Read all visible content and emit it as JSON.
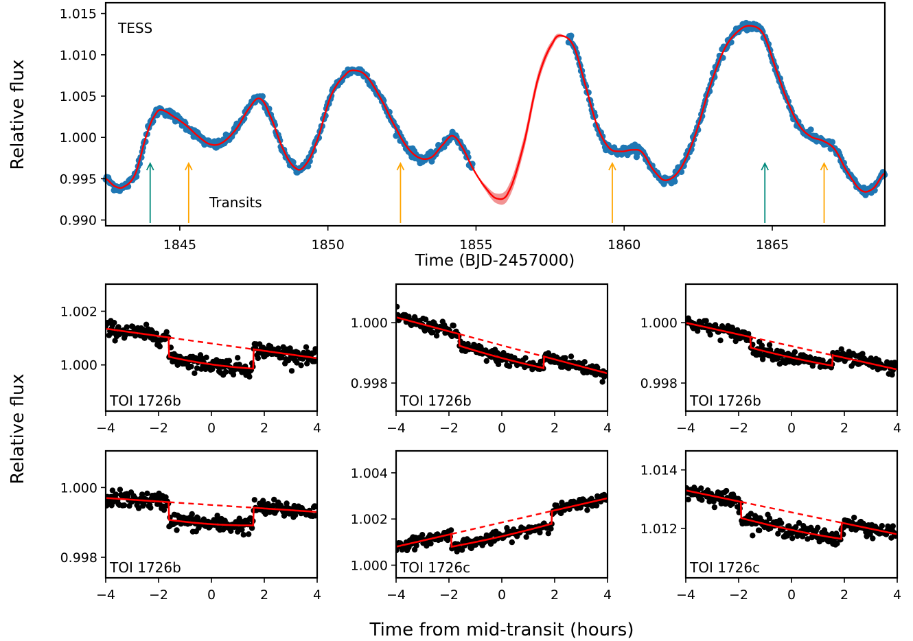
{
  "chart_data": [
    {
      "type": "line",
      "panel": "main",
      "label": "TESS",
      "annotation": "Transits",
      "xlabel": "Time (BJD-2457000)",
      "ylabel": "Relative flux",
      "xlim": [
        1842.5,
        1868.8
      ],
      "ylim": [
        0.9893,
        1.0163
      ],
      "xticks": [
        1845,
        1850,
        1855,
        1860,
        1865
      ],
      "yticks": [
        "0.990",
        "0.995",
        "1.000",
        "1.005",
        "1.010",
        "1.015"
      ],
      "colors": {
        "data": "#1f77b4",
        "model": "#ff0000",
        "band": "#f08080"
      },
      "model_knots": [
        [
          1842.5,
          0.995
        ],
        [
          1842.8,
          0.9941
        ],
        [
          1843.1,
          0.994
        ],
        [
          1843.5,
          0.9956
        ],
        [
          1843.9,
          1.0005
        ],
        [
          1844.2,
          1.0029
        ],
        [
          1844.4,
          1.0033
        ],
        [
          1844.8,
          1.0025
        ],
        [
          1845.2,
          1.0015
        ],
        [
          1845.6,
          1.0002
        ],
        [
          1846.0,
          0.9992
        ],
        [
          1846.4,
          0.9993
        ],
        [
          1846.9,
          1.001
        ],
        [
          1847.4,
          1.0038
        ],
        [
          1847.7,
          1.0047
        ],
        [
          1848.0,
          1.003
        ],
        [
          1848.5,
          0.9985
        ],
        [
          1848.9,
          0.9963
        ],
        [
          1849.2,
          0.9965
        ],
        [
          1849.6,
          0.9993
        ],
        [
          1850.1,
          1.005
        ],
        [
          1850.6,
          1.0076
        ],
        [
          1850.9,
          1.0081
        ],
        [
          1851.3,
          1.0074
        ],
        [
          1851.8,
          1.0046
        ],
        [
          1852.3,
          1.0011
        ],
        [
          1852.7,
          0.9987
        ],
        [
          1853.1,
          0.9975
        ],
        [
          1853.5,
          0.9976
        ],
        [
          1853.9,
          0.9992
        ],
        [
          1854.2,
          1.0002
        ],
        [
          1854.5,
          0.999
        ],
        [
          1854.9,
          0.9962
        ],
        [
          1855.3,
          0.994
        ],
        [
          1855.7,
          0.9926
        ],
        [
          1856.1,
          0.9934
        ],
        [
          1856.6,
          0.999
        ],
        [
          1857.1,
          1.0072
        ],
        [
          1857.6,
          1.0115
        ],
        [
          1857.9,
          1.0123
        ],
        [
          1858.3,
          1.011
        ],
        [
          1858.7,
          1.0062
        ],
        [
          1859.1,
          1.0013
        ],
        [
          1859.5,
          0.9987
        ],
        [
          1859.9,
          0.9983
        ],
        [
          1860.3,
          0.9985
        ],
        [
          1860.6,
          0.9982
        ],
        [
          1861.0,
          0.996
        ],
        [
          1861.4,
          0.9948
        ],
        [
          1861.9,
          0.9962
        ],
        [
          1862.4,
          1.0003
        ],
        [
          1862.9,
          1.0062
        ],
        [
          1863.4,
          1.0108
        ],
        [
          1863.9,
          1.013
        ],
        [
          1864.3,
          1.0135
        ],
        [
          1864.7,
          1.0125
        ],
        [
          1865.1,
          1.0085
        ],
        [
          1865.5,
          1.0045
        ],
        [
          1865.9,
          1.0015
        ],
        [
          1866.3,
          1.0001
        ],
        [
          1866.7,
          0.9996
        ],
        [
          1867.1,
          0.9986
        ],
        [
          1867.5,
          0.996
        ],
        [
          1868.0,
          0.9936
        ],
        [
          1868.4,
          0.9938
        ],
        [
          1868.8,
          0.9957
        ]
      ],
      "data_gap": [
        1854.9,
        1858.1
      ],
      "arrows": [
        {
          "time": 1844.0,
          "planet": "TOI 1726c",
          "color": "#00897b"
        },
        {
          "time": 1845.3,
          "planet": "TOI 1726b",
          "color": "#ffa500"
        },
        {
          "time": 1852.45,
          "planet": "TOI 1726b",
          "color": "#ffa500"
        },
        {
          "time": 1859.6,
          "planet": "TOI 1726b",
          "color": "#ffa500"
        },
        {
          "time": 1864.75,
          "planet": "TOI 1726c",
          "color": "#00897b"
        },
        {
          "time": 1866.75,
          "planet": "TOI 1726b",
          "color": "#ffa500"
        }
      ]
    },
    {
      "type": "scatter",
      "panel": "transit-1",
      "label": "TOI 1726b",
      "xlim": [
        -4,
        4
      ],
      "ylim": [
        0.99828,
        1.00301
      ],
      "yticks": [
        "1.000",
        "1.002"
      ],
      "xticks": [
        "−4",
        "−2",
        "0",
        "2",
        "4"
      ],
      "baseline": [
        1.00135,
        1.00025
      ],
      "depth": 0.00078,
      "t_half": 1.6,
      "noise": 0.00025
    },
    {
      "type": "scatter",
      "panel": "transit-2",
      "label": "TOI 1726b",
      "xlim": [
        -4,
        4
      ],
      "ylim": [
        0.99707,
        1.00128
      ],
      "yticks": [
        "0.998",
        "1.000"
      ],
      "xticks": [
        "−4",
        "−2",
        "0",
        "2",
        "4"
      ],
      "baseline": [
        1.00018,
        0.99832
      ],
      "depth": 0.00042,
      "t_half": 1.6,
      "noise": 0.00019
    },
    {
      "type": "scatter",
      "panel": "transit-3",
      "label": "TOI 1726b",
      "xlim": [
        -4,
        4
      ],
      "ylim": [
        0.99707,
        1.00128
      ],
      "yticks": [
        "0.998",
        "1.000"
      ],
      "xticks": [
        "−4",
        "−2",
        "0",
        "2",
        "4"
      ],
      "baseline": [
        1.0,
        0.99845
      ],
      "depth": 0.00038,
      "t_half": 1.55,
      "noise": 0.00019
    },
    {
      "type": "scatter",
      "panel": "transit-4",
      "label": "TOI 1726b",
      "xlim": [
        -4,
        4
      ],
      "ylim": [
        0.99741,
        1.00105
      ],
      "yticks": [
        "0.998",
        "1.000"
      ],
      "xticks": [
        "−4",
        "−2",
        "0",
        "2",
        "4"
      ],
      "baseline": [
        0.9997,
        0.9993
      ],
      "depth": 0.00055,
      "t_half": 1.6,
      "noise": 0.0002
    },
    {
      "type": "scatter",
      "panel": "transit-5",
      "label": "TOI 1726c",
      "xlim": [
        -4,
        4
      ],
      "ylim": [
        0.99945,
        1.00495
      ],
      "yticks": [
        "1.000",
        "1.002",
        "1.004"
      ],
      "xticks": [
        "−4",
        "−2",
        "0",
        "2",
        "4"
      ],
      "baseline": [
        1.0008,
        1.0029
      ],
      "depth": 0.0006,
      "t_half": 1.9,
      "noise": 0.0002
    },
    {
      "type": "scatter",
      "panel": "transit-6",
      "label": "TOI 1726c",
      "xlim": [
        -4,
        4
      ],
      "ylim": [
        1.01031,
        1.01465
      ],
      "yticks": [
        "1.012",
        "1.014"
      ],
      "xticks": [
        "−4",
        "−2",
        "0",
        "2",
        "4"
      ],
      "baseline": [
        1.0133,
        1.0118
      ],
      "depth": 0.0006,
      "t_half": 1.9,
      "noise": 0.00022
    }
  ],
  "labels": {
    "bottom_ylabel": "Relative flux",
    "bottom_xlabel": "Time from mid-transit (hours)"
  }
}
